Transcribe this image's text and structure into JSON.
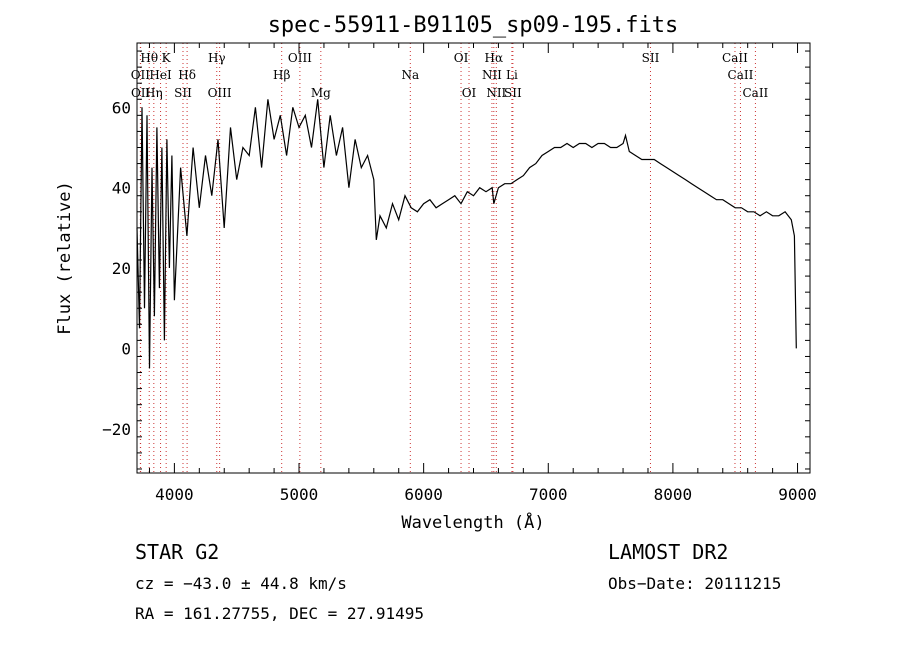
{
  "chart_data": {
    "type": "line",
    "title": "spec-55911-B91105_sp09-195.fits",
    "xlabel": "Wavelength (Å)",
    "ylabel": "Flux (relative)",
    "xlim": [
      3700,
      9100
    ],
    "ylim": [
      -31,
      76
    ],
    "xticks": [
      4000,
      5000,
      6000,
      7000,
      8000,
      9000
    ],
    "yticks": [
      -20,
      0,
      20,
      40,
      60
    ],
    "grid": false,
    "line_color": "#000000",
    "marker_color": "#cc3333",
    "series": [
      {
        "x": [
          3700,
          3720,
          3740,
          3760,
          3780,
          3800,
          3820,
          3840,
          3860,
          3880,
          3900,
          3920,
          3940,
          3960,
          3980,
          4000,
          4050,
          4100,
          4150,
          4200,
          4250,
          4300,
          4350,
          4400,
          4450,
          4500,
          4550,
          4600,
          4650,
          4700,
          4750,
          4800,
          4850,
          4900,
          4950,
          5000,
          5050,
          5100,
          5150,
          5200,
          5250,
          5300,
          5350,
          5400,
          5450,
          5500,
          5550,
          5600,
          5620,
          5650,
          5700,
          5750,
          5800,
          5850,
          5900,
          5950,
          6000,
          6050,
          6100,
          6150,
          6200,
          6250,
          6300,
          6350,
          6400,
          6450,
          6500,
          6550,
          6563,
          6600,
          6650,
          6700,
          6750,
          6800,
          6850,
          6900,
          6950,
          7000,
          7050,
          7100,
          7150,
          7200,
          7250,
          7300,
          7350,
          7400,
          7450,
          7500,
          7550,
          7600,
          7620,
          7650,
          7700,
          7750,
          7800,
          7850,
          7900,
          7950,
          8000,
          8050,
          8100,
          8150,
          8200,
          8250,
          8300,
          8350,
          8400,
          8450,
          8500,
          8550,
          8600,
          8650,
          8700,
          8750,
          8800,
          8850,
          8900,
          8950,
          8975,
          8990
        ],
        "y": [
          30,
          5,
          60,
          10,
          58,
          -5,
          45,
          8,
          55,
          15,
          50,
          2,
          52,
          20,
          48,
          12,
          45,
          28,
          50,
          35,
          48,
          38,
          52,
          30,
          55,
          42,
          50,
          48,
          60,
          45,
          62,
          52,
          58,
          48,
          60,
          55,
          58,
          50,
          62,
          45,
          58,
          48,
          55,
          40,
          52,
          45,
          48,
          42,
          27,
          33,
          30,
          36,
          32,
          38,
          35,
          34,
          36,
          37,
          35,
          36,
          37,
          38,
          36,
          39,
          38,
          40,
          39,
          40,
          36,
          40,
          41,
          41,
          42,
          43,
          45,
          46,
          48,
          49,
          50,
          50,
          51,
          50,
          51,
          51,
          50,
          51,
          51,
          50,
          50,
          51,
          53,
          49,
          48,
          47,
          47,
          47,
          46,
          45,
          44,
          43,
          42,
          41,
          40,
          39,
          38,
          37,
          37,
          36,
          35,
          35,
          34,
          34,
          33,
          34,
          33,
          33,
          34,
          32,
          28,
          0
        ]
      }
    ],
    "lines": [
      {
        "label": "Hθ",
        "x": 3798,
        "row": 0
      },
      {
        "label": "K",
        "x": 3934,
        "row": 0
      },
      {
        "label": "Hγ",
        "x": 4340,
        "row": 0
      },
      {
        "label": "OIII",
        "x": 5007,
        "row": 0
      },
      {
        "label": "OI",
        "x": 6300,
        "row": 0
      },
      {
        "label": "Hα",
        "x": 6563,
        "row": 0
      },
      {
        "label": "SII",
        "x": 7820,
        "row": 0
      },
      {
        "label": "CaII",
        "x": 8498,
        "row": 0
      },
      {
        "label": "OII",
        "x": 3727,
        "row": 1
      },
      {
        "label": "HeI",
        "x": 3889,
        "row": 1
      },
      {
        "label": "Hδ",
        "x": 4102,
        "row": 1
      },
      {
        "label": "Hβ",
        "x": 4861,
        "row": 1
      },
      {
        "label": "Na",
        "x": 5893,
        "row": 1
      },
      {
        "label": "NII",
        "x": 6548,
        "row": 1
      },
      {
        "label": "Li",
        "x": 6708,
        "row": 1
      },
      {
        "label": "CaII",
        "x": 8542,
        "row": 1
      },
      {
        "label": "OII",
        "x": 3729,
        "row": 2
      },
      {
        "label": "Hη",
        "x": 3835,
        "row": 2
      },
      {
        "label": "SII",
        "x": 4069,
        "row": 2
      },
      {
        "label": "OIII",
        "x": 4363,
        "row": 2
      },
      {
        "label": "Mg",
        "x": 5175,
        "row": 2
      },
      {
        "label": "OI",
        "x": 6364,
        "row": 2
      },
      {
        "label": "NII",
        "x": 6583,
        "row": 2
      },
      {
        "label": "SII",
        "x": 6716,
        "row": 2
      },
      {
        "label": "CaII",
        "x": 8662,
        "row": 2
      }
    ]
  },
  "info": {
    "object_class": "STAR    G2",
    "survey": "LAMOST DR2",
    "redshift": "cz = −43.0 ± 44.8 km/s",
    "obs_date": "Obs−Date: 20111215",
    "coords": "RA = 161.27755, DEC =  27.91495"
  }
}
